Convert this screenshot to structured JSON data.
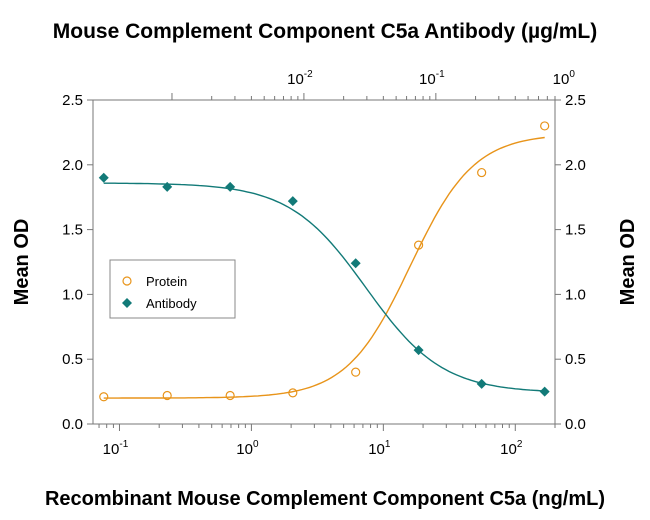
{
  "chart_data": {
    "type": "scatter",
    "title": "Mouse Complement Component C5a Antibody (µg/mL)",
    "xlabel": "Recombinant Mouse Complement Component C5a (ng/mL)",
    "ylabel": "Mean OD",
    "ylabel_right": "Mean OD",
    "x_scale": "log",
    "xlim": [
      0.063,
      200
    ],
    "ylim": [
      0,
      2.5
    ],
    "y_ticks": [
      "0.0",
      "0.5",
      "1.0",
      "1.5",
      "2.0",
      "2.5"
    ],
    "x_ticks_bottom": [
      {
        "base": "10",
        "exp": "-1",
        "value": 0.1
      },
      {
        "base": "10",
        "exp": "0",
        "value": 1
      },
      {
        "base": "10",
        "exp": "1",
        "value": 10
      },
      {
        "base": "10",
        "exp": "2",
        "value": 100
      }
    ],
    "x_ticks_top": [
      {
        "base": "10",
        "exp": "-2",
        "value": 0.01
      },
      {
        "base": "10",
        "exp": "-1",
        "value": 0.1
      },
      {
        "base": "10",
        "exp": "0",
        "value": 1
      }
    ],
    "top_axis_scale_ratio": 0.004,
    "grid": false,
    "legend_position": "middle-left",
    "series": [
      {
        "name": "Protein",
        "axis": "bottom",
        "marker": "open-circle",
        "color": "#E8941A",
        "x": [
          0.076,
          0.23,
          0.69,
          2.06,
          6.17,
          18.5,
          55.6,
          167
        ],
        "y": [
          0.21,
          0.22,
          0.22,
          0.24,
          0.4,
          1.38,
          1.94,
          2.3
        ],
        "fit": {
          "bottom": 0.2,
          "top": 2.24,
          "ec50": 16,
          "hill": 1.8
        }
      },
      {
        "name": "Antibody",
        "axis": "top",
        "marker": "filled-diamond",
        "color": "#127A78",
        "x_bottom_equiv": [
          0.076,
          0.23,
          0.69,
          2.06,
          6.17,
          18.5,
          55.6,
          167
        ],
        "y": [
          1.9,
          1.83,
          1.83,
          1.72,
          1.24,
          0.57,
          0.31,
          0.25
        ],
        "fit": {
          "bottom": 0.24,
          "top": 1.86,
          "ec50": 7.4,
          "hill": 1.5
        }
      }
    ]
  }
}
